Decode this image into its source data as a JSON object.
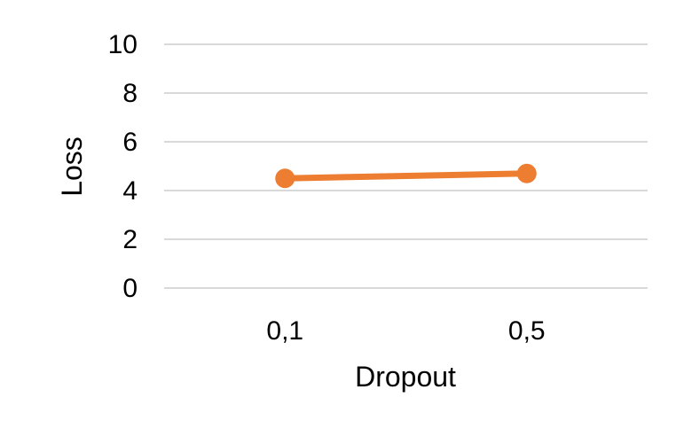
{
  "chart_data": {
    "type": "line",
    "title": "",
    "xlabel": "Dropout",
    "ylabel": "Loss",
    "categories": [
      "0,1",
      "0,5"
    ],
    "ylim": [
      0,
      10
    ],
    "yticks": [
      "0",
      "2",
      "4",
      "6",
      "8",
      "10"
    ],
    "grid": true,
    "legend": "none",
    "series": [
      {
        "values": [
          4.5,
          4.7
        ],
        "color": "#ED7D31"
      }
    ],
    "gridline_color": "#D9D9D9"
  }
}
